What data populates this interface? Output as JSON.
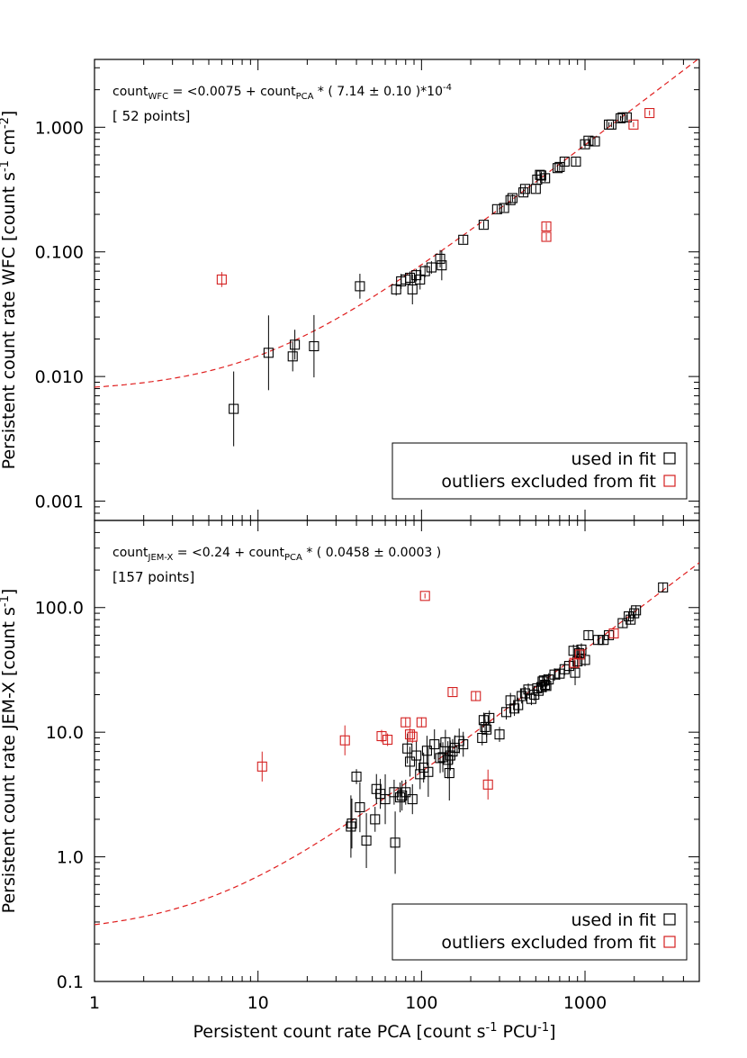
{
  "chart_data": [
    {
      "type": "scatter",
      "panel": "top",
      "scale": {
        "x": "log",
        "y": "log"
      },
      "xlim": [
        1,
        5000
      ],
      "ylim": [
        0.0007,
        3.5
      ],
      "ylabel": {
        "prefix": "Persistent count rate WFC [count s",
        "sup1": "-1",
        "mid": " cm",
        "sup2": "-2",
        "suffix": "]"
      },
      "yticks": [
        0.001,
        0.01,
        0.1,
        1
      ],
      "ytick_labels": [
        "0.001",
        "0.010",
        "0.100",
        "1.000"
      ],
      "annotation": {
        "base": "count",
        "sub1": "WFC",
        "mid": " = <0.0075 + count",
        "sub2": "PCA",
        "post": " * ( 7.14 ± 0.10 )*10",
        "sup": "-4"
      },
      "points_note": "[ 52 points]",
      "fit_line": {
        "intercept": 0.0075,
        "slope": 0.000714
      },
      "legend": {
        "placement": "bottom-right",
        "entries": [
          "used in fit",
          "outliers excluded from fit"
        ]
      },
      "series": [
        {
          "name": "used in fit",
          "color": "#000000",
          "points": [
            [
              7.1,
              0.0055,
              0.3
            ],
            [
              11.6,
              0.0155,
              0.3
            ],
            [
              16.3,
              0.0145,
              0.12
            ],
            [
              16.8,
              0.018,
              0.12
            ],
            [
              22,
              0.0175,
              0.25
            ],
            [
              42,
              0.053,
              0.1
            ],
            [
              70,
              0.05,
              0.05
            ],
            [
              75,
              0.058,
              0.06
            ],
            [
              80,
              0.06,
              0.05
            ],
            [
              85,
              0.062,
              0.05
            ],
            [
              88,
              0.05,
              0.12
            ],
            [
              93,
              0.065,
              0.05
            ],
            [
              98,
              0.06,
              0.08
            ],
            [
              105,
              0.07,
              0.05
            ],
            [
              115,
              0.075,
              0.05
            ],
            [
              130,
              0.088,
              0.07
            ],
            [
              133,
              0.078,
              0.12
            ],
            [
              180,
              0.125,
              0.03
            ],
            [
              240,
              0.165,
              0.03
            ],
            [
              290,
              0.22,
              0.03
            ],
            [
              320,
              0.225,
              0.03
            ],
            [
              350,
              0.26,
              0.03
            ],
            [
              360,
              0.27,
              0.03
            ],
            [
              420,
              0.3,
              0.03
            ],
            [
              430,
              0.32,
              0.03
            ],
            [
              500,
              0.32,
              0.03
            ],
            [
              510,
              0.38,
              0.03
            ],
            [
              530,
              0.415,
              0.03
            ],
            [
              540,
              0.41,
              0.03
            ],
            [
              570,
              0.39,
              0.03
            ],
            [
              680,
              0.47,
              0.03
            ],
            [
              700,
              0.48,
              0.03
            ],
            [
              750,
              0.53,
              0.03
            ],
            [
              880,
              0.53,
              0.03
            ],
            [
              1000,
              0.73,
              0.03
            ],
            [
              1050,
              0.78,
              0.03
            ],
            [
              1150,
              0.77,
              0.03
            ],
            [
              1400,
              1.05,
              0.02
            ],
            [
              1450,
              1.05,
              0.02
            ],
            [
              1650,
              1.18,
              0.02
            ],
            [
              1700,
              1.2,
              0.02
            ],
            [
              1800,
              1.2,
              0.02
            ]
          ]
        },
        {
          "name": "outliers excluded from fit",
          "color": "#d42020",
          "points": [
            [
              6,
              0.06,
              0.06
            ],
            [
              580,
              0.16,
              0.03
            ],
            [
              580,
              0.132,
              0.03
            ],
            [
              1980,
              1.05,
              0.02
            ],
            [
              2480,
              1.3,
              0.02
            ]
          ]
        }
      ]
    },
    {
      "type": "scatter",
      "panel": "bottom",
      "scale": {
        "x": "log",
        "y": "log"
      },
      "xlim": [
        1,
        5000
      ],
      "ylim": [
        0.1,
        500
      ],
      "xlabel": {
        "prefix": "Persistent count rate PCA [count s",
        "sup1": "-1",
        "mid": " PCU",
        "sup2": "-1",
        "suffix": "]"
      },
      "xticks": [
        1,
        10,
        100,
        1000
      ],
      "xtick_labels": [
        "1",
        "10",
        "100",
        "1000"
      ],
      "ylabel": {
        "prefix": "Persistent count rate JEM-X [count s",
        "sup1": "-1",
        "suffix": "]"
      },
      "yticks": [
        0.1,
        1,
        10,
        100
      ],
      "ytick_labels": [
        "0.1",
        "1.0",
        "10.0",
        "100.0"
      ],
      "annotation": {
        "base": "count",
        "sub1": "JEM-X",
        "mid": " = <0.24 + count",
        "sub2": "PCA",
        "post": " * ( 0.0458 ± 0.0003 )",
        "sup": ""
      },
      "points_note": "[157 points]",
      "fit_line": {
        "intercept": 0.24,
        "slope": 0.0458
      },
      "legend": {
        "placement": "bottom-right",
        "entries": [
          "used in fit",
          "outliers excluded from fit"
        ]
      },
      "series": [
        {
          "name": "used in fit",
          "color": "#000000",
          "points": [
            [
              37,
              1.75,
              0.25
            ],
            [
              37.5,
              1.85,
              0.2
            ],
            [
              40,
              4.4,
              0.06
            ],
            [
              42,
              2.5,
              0.2
            ],
            [
              46,
              1.35,
              0.22
            ],
            [
              52,
              2.0,
              0.1
            ],
            [
              53,
              3.5,
              0.12
            ],
            [
              56,
              3.2,
              0.12
            ],
            [
              60,
              2.9,
              0.2
            ],
            [
              68,
              3.3,
              0.1
            ],
            [
              69,
              1.3,
              0.25
            ],
            [
              74,
              3.0,
              0.12
            ],
            [
              76,
              3.1,
              0.12
            ],
            [
              80,
              3.3,
              0.1
            ],
            [
              82,
              7.4,
              0.12
            ],
            [
              85,
              5.8,
              0.12
            ],
            [
              88,
              2.9,
              0.12
            ],
            [
              93,
              6.5,
              0.12
            ],
            [
              98,
              4.6,
              0.12
            ],
            [
              103,
              5.2,
              0.12
            ],
            [
              108,
              7.1,
              0.12
            ],
            [
              110,
              4.8,
              0.2
            ],
            [
              120,
              8.0,
              0.12
            ],
            [
              130,
              6.2,
              0.12
            ],
            [
              135,
              6.3,
              0.12
            ],
            [
              140,
              8.3,
              0.1
            ],
            [
              145,
              6.0,
              0.15
            ],
            [
              148,
              4.7,
              0.22
            ],
            [
              150,
              6.5,
              0.12
            ],
            [
              155,
              7.0,
              0.1
            ],
            [
              160,
              7.5,
              0.1
            ],
            [
              170,
              8.5,
              0.1
            ],
            [
              180,
              8.0,
              0.1
            ],
            [
              235,
              9.0,
              0.06
            ],
            [
              240,
              12.5,
              0.06
            ],
            [
              245,
              11.0,
              0.06
            ],
            [
              250,
              10.5,
              0.06
            ],
            [
              260,
              13.0,
              0.06
            ],
            [
              300,
              9.6,
              0.06
            ],
            [
              330,
              14.5,
              0.06
            ],
            [
              350,
              18,
              0.06
            ],
            [
              370,
              15.5,
              0.06
            ],
            [
              390,
              16.5,
              0.06
            ],
            [
              410,
              19.5,
              0.06
            ],
            [
              430,
              20.5,
              0.05
            ],
            [
              450,
              22,
              0.05
            ],
            [
              470,
              18.5,
              0.05
            ],
            [
              490,
              20,
              0.05
            ],
            [
              510,
              22.5,
              0.05
            ],
            [
              520,
              21.5,
              0.05
            ],
            [
              540,
              23,
              0.05
            ],
            [
              550,
              25.5,
              0.05
            ],
            [
              560,
              26,
              0.05
            ],
            [
              570,
              24,
              0.05
            ],
            [
              580,
              23.5,
              0.05
            ],
            [
              600,
              26.5,
              0.05
            ],
            [
              650,
              29,
              0.05
            ],
            [
              700,
              29.5,
              0.05
            ],
            [
              750,
              32,
              0.05
            ],
            [
              800,
              34,
              0.05
            ],
            [
              850,
              45,
              0.05
            ],
            [
              870,
              30,
              0.1
            ],
            [
              900,
              37,
              0.05
            ],
            [
              920,
              43,
              0.05
            ],
            [
              950,
              46,
              0.05
            ],
            [
              1000,
              38,
              0.05
            ],
            [
              1050,
              60,
              0.04
            ],
            [
              1200,
              55,
              0.04
            ],
            [
              1300,
              55,
              0.04
            ],
            [
              1400,
              60,
              0.04
            ],
            [
              1700,
              75,
              0.04
            ],
            [
              1850,
              85,
              0.04
            ],
            [
              1900,
              80,
              0.04
            ],
            [
              2000,
              90,
              0.04
            ],
            [
              2050,
              95,
              0.04
            ],
            [
              3000,
              145,
              0.04
            ]
          ]
        },
        {
          "name": "outliers excluded from fit",
          "color": "#d42020",
          "points": [
            [
              10.6,
              5.3,
              0.12
            ],
            [
              34,
              8.6,
              0.12
            ],
            [
              57,
              9.3,
              0.05
            ],
            [
              62,
              8.7,
              0.05
            ],
            [
              80,
              12.0,
              0.04
            ],
            [
              85,
              9.6,
              0.05
            ],
            [
              88,
              9.2,
              0.05
            ],
            [
              100,
              12.0,
              0.04
            ],
            [
              105,
              124,
              0.02
            ],
            [
              155,
              21,
              0.03
            ],
            [
              215,
              19.5,
              0.04
            ],
            [
              255,
              3.8,
              0.12
            ],
            [
              860,
              36,
              0.04
            ],
            [
              930,
              42,
              0.04
            ],
            [
              1500,
              62,
              0.03
            ]
          ]
        }
      ]
    }
  ],
  "colors": {
    "data": "#000000",
    "outlier": "#d42020",
    "fit_line": "#e02020"
  }
}
